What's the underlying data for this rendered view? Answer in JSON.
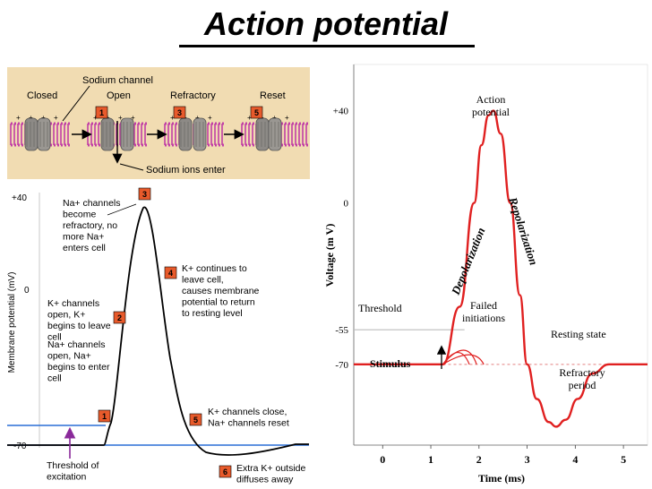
{
  "title": "Action potential",
  "colors": {
    "top_panel_bg": "#f1dcb2",
    "membrane": "#c23fa6",
    "badge": "#e85a2b",
    "curve_red": "#e02020",
    "baseline_blue": "#2a6fd6",
    "arrow_purple": "#8a2a9a"
  },
  "channel_panel": {
    "sodium_channel": "Sodium channel",
    "states": [
      "Closed",
      "Open",
      "Refractory",
      "Reset"
    ],
    "badges": [
      "1",
      "3",
      "5"
    ],
    "ions_enter": "Sodium ions enter"
  },
  "membrane_chart": {
    "ylabel": "Membrane potential (mV)",
    "yticks": [
      "+40",
      "0",
      "-70"
    ],
    "annotations": {
      "s1": "Na+ channels\nopen, Na+\nbegins to enter\ncell",
      "s2": "K+ channels\nopen, K+\nbegins to leave\ncell",
      "s3": "Na+ channels\nbecome\nrefractory, no\nmore Na+\nenters cell",
      "s4": "K+ continues to\nleave cell,\ncauses membrane\npotential to return\nto resting level",
      "s5": "K+ channels close,\nNa+ channels reset",
      "s6": "Extra K+ outside\ndiffuses away",
      "threshold": "Threshold of\nexcitation"
    },
    "badges": [
      "1",
      "2",
      "3",
      "4",
      "5",
      "6"
    ]
  },
  "chart_data": {
    "type": "line",
    "ylabel": "Voltage (m V)",
    "xlabel": "Time (ms)",
    "x_ticks": [
      "0",
      "1",
      "2",
      "3",
      "4",
      "5"
    ],
    "y_ticks": [
      "+40",
      "0",
      "-55",
      "-70"
    ],
    "xlim": [
      -0.6,
      5.5
    ],
    "ylim": [
      -105,
      60
    ],
    "series": [
      {
        "x": [
          -0.6,
          1.25,
          1.6,
          1.9,
          2.05,
          2.2,
          2.3,
          2.45,
          2.65,
          2.85,
          3.0,
          3.2,
          3.45,
          3.6,
          3.8,
          4.05,
          4.35,
          4.7,
          5.0,
          5.5
        ],
        "y": [
          -70,
          -70,
          -45,
          0,
          25,
          38,
          40,
          30,
          0,
          -40,
          -70,
          -85,
          -95,
          -97,
          -94,
          -85,
          -74,
          -70,
          -70,
          -70
        ]
      }
    ],
    "labels": {
      "action_potential": "Action\npotential",
      "depolarization": "Depolarization",
      "repolarization": "Repolarization",
      "threshold": "Threshold",
      "failed": "Failed\ninitiations",
      "resting": "Resting state",
      "stimulus": "Stimulus",
      "refractory": "Refractory\nperiod"
    }
  }
}
